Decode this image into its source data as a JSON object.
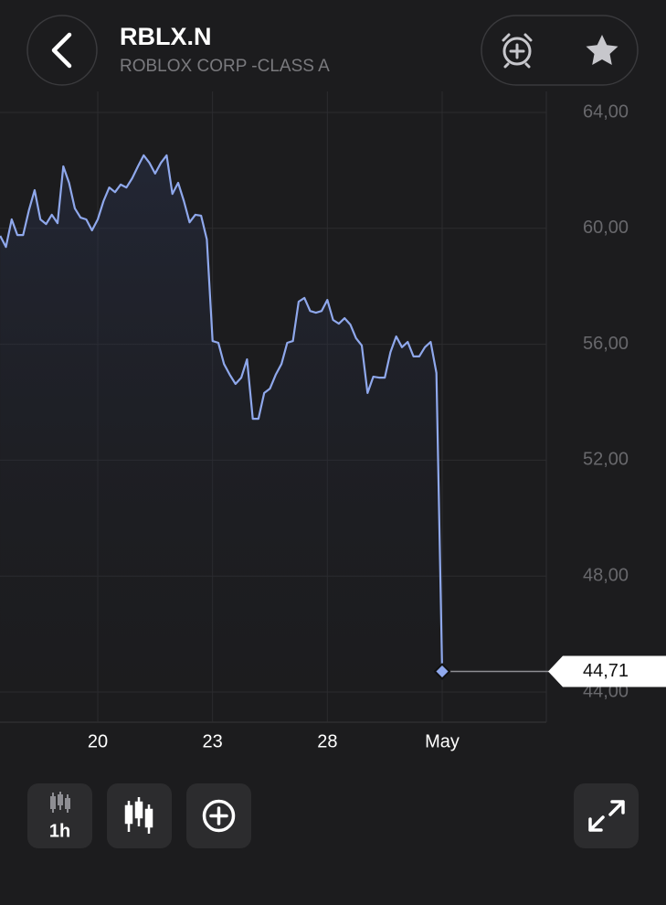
{
  "header": {
    "title": "RBLX.N",
    "subtitle": "ROBLOX CORP -CLASS A"
  },
  "chart_data": {
    "type": "line",
    "categories": [
      null,
      null,
      null,
      null,
      null,
      null,
      null,
      null,
      null,
      null,
      null,
      null,
      null,
      null,
      null,
      null,
      null,
      "20",
      null,
      null,
      null,
      null,
      null,
      null,
      null,
      null,
      null,
      null,
      null,
      null,
      null,
      null,
      null,
      null,
      null,
      null,
      null,
      "23",
      null,
      null,
      null,
      null,
      null,
      null,
      null,
      null,
      null,
      null,
      null,
      null,
      null,
      null,
      null,
      null,
      null,
      null,
      null,
      "28",
      null,
      null,
      null,
      null,
      null,
      null,
      null,
      null,
      null,
      null,
      null,
      null,
      null,
      null,
      null,
      null,
      null,
      null,
      null,
      "May"
    ],
    "values": [
      59.74,
      59.36,
      60.31,
      59.77,
      59.77,
      60.62,
      61.32,
      60.31,
      60.15,
      60.47,
      60.18,
      62.14,
      61.57,
      60.69,
      60.37,
      60.31,
      59.93,
      60.31,
      60.94,
      61.41,
      61.25,
      61.51,
      61.41,
      61.73,
      62.14,
      62.52,
      62.26,
      61.89,
      62.26,
      62.52,
      61.19,
      61.57,
      60.94,
      60.21,
      60.47,
      60.44,
      59.62,
      56.11,
      56.05,
      55.32,
      54.95,
      54.63,
      54.85,
      55.48,
      53.43,
      53.43,
      54.32,
      54.47,
      54.95,
      55.32,
      56.05,
      56.11,
      57.47,
      57.6,
      57.15,
      57.09,
      57.15,
      57.53,
      56.84,
      56.71,
      56.9,
      56.68,
      56.21,
      55.96,
      54.32,
      54.88,
      54.85,
      54.85,
      55.73,
      56.27,
      55.9,
      56.08,
      55.58,
      55.58,
      55.9,
      56.08,
      55.01,
      44.71
    ],
    "last_value_label": "44,71",
    "color": "#8fa8ec",
    "ylim": [
      43,
      64.3
    ],
    "yticks": [
      {
        "value": 64,
        "label": "64,00"
      },
      {
        "value": 60,
        "label": "60,00"
      },
      {
        "value": 56,
        "label": "56,00"
      },
      {
        "value": 52,
        "label": "52,00"
      },
      {
        "value": 48,
        "label": "48,00"
      },
      {
        "value": 44,
        "label": "44,00"
      }
    ],
    "grid": true
  },
  "toolbar": {
    "interval": "1h"
  }
}
